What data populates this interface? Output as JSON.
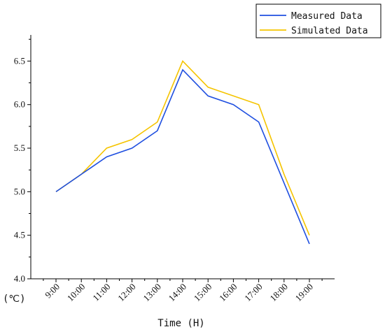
{
  "chart_data": {
    "type": "line",
    "categories": [
      "9:00",
      "10:00",
      "11:00",
      "12:00",
      "13:00",
      "14:00",
      "15:00",
      "16:00",
      "17:00",
      "18:00",
      "19:00"
    ],
    "series": [
      {
        "name": "Measured Data",
        "color": "#1f4fe0",
        "values": [
          5.0,
          5.2,
          5.4,
          5.5,
          5.7,
          6.4,
          6.1,
          6.0,
          5.8,
          5.1,
          4.4
        ]
      },
      {
        "name": "Simulated Data",
        "color": "#f5c400",
        "values": [
          5.0,
          5.2,
          5.5,
          5.6,
          5.8,
          6.5,
          6.2,
          6.1,
          6.0,
          5.2,
          4.5
        ]
      }
    ],
    "xlabel": "Time (H)",
    "ylabel": "(℃)",
    "ylim": [
      4.0,
      6.8
    ],
    "yticks": [
      4.0,
      4.5,
      5.0,
      5.5,
      6.0,
      6.5
    ],
    "ytick_labels": [
      "4.0",
      "4.5",
      "5.0",
      "5.5",
      "6.0",
      "6.5"
    ],
    "grid": false,
    "legend_position": "top-right"
  }
}
